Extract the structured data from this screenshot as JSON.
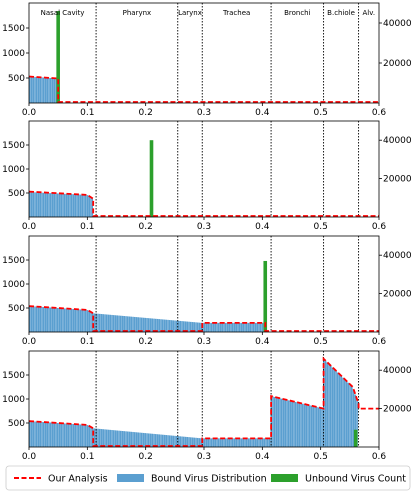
{
  "chart_data": {
    "type": "bar",
    "regions": [
      {
        "label": "Nasal Cavity",
        "start": 0.0,
        "end": 0.115
      },
      {
        "label": "Pharynx",
        "start": 0.115,
        "end": 0.255
      },
      {
        "label": "Larynx",
        "start": 0.255,
        "end": 0.297
      },
      {
        "label": "Trachea",
        "start": 0.297,
        "end": 0.415
      },
      {
        "label": "Bronchi",
        "start": 0.415,
        "end": 0.505
      },
      {
        "label": "B.chiole",
        "start": 0.505,
        "end": 0.565
      },
      {
        "label": "Alv.",
        "start": 0.565,
        "end": 0.6
      }
    ],
    "xlim": [
      0.0,
      0.6
    ],
    "ylim_left": [
      0,
      2000
    ],
    "ylim_right": [
      0,
      50000
    ],
    "xticks": [
      "0.0",
      "0.1",
      "0.2",
      "0.3",
      "0.4",
      "0.5",
      "0.6"
    ],
    "yticks_left": [
      "500",
      "1000",
      "1500"
    ],
    "yticks_right": [
      "20000",
      "40000"
    ],
    "legend": {
      "placement": "bottom",
      "entries": [
        {
          "label": "Our Analysis",
          "color": "#ff0000",
          "style": "dashed-line"
        },
        {
          "label": "Bound Virus Distribution",
          "color": "#5b9fd0",
          "style": "patch"
        },
        {
          "label": "Unbound Virus Count",
          "color": "#2ca02c",
          "style": "patch"
        }
      ]
    },
    "panels": [
      {
        "bound_profile": [
          [
            0.0,
            530
          ],
          [
            0.05,
            490
          ]
        ],
        "unbound_bar": {
          "x": 0.05,
          "value": 46000
        },
        "analysis_line": [
          [
            0.0,
            530
          ],
          [
            0.05,
            490
          ],
          [
            0.05,
            20
          ],
          [
            0.6,
            20
          ]
        ]
      },
      {
        "bound_profile": [
          [
            0.0,
            520
          ],
          [
            0.1,
            460
          ],
          [
            0.11,
            380
          ]
        ],
        "unbound_bar": {
          "x": 0.21,
          "value": 40000
        },
        "analysis_line": [
          [
            0.0,
            530
          ],
          [
            0.1,
            460
          ],
          [
            0.11,
            380
          ],
          [
            0.11,
            20
          ],
          [
            0.6,
            20
          ]
        ]
      },
      {
        "bound_profile": [
          [
            0.0,
            540
          ],
          [
            0.1,
            460
          ],
          [
            0.11,
            390
          ],
          [
            0.297,
            190
          ],
          [
            0.405,
            190
          ]
        ],
        "unbound_bar": {
          "x": 0.405,
          "value": 37000
        },
        "analysis_line": [
          [
            0.0,
            540
          ],
          [
            0.1,
            460
          ],
          [
            0.11,
            390
          ],
          [
            0.11,
            20
          ],
          [
            0.297,
            20
          ],
          [
            0.297,
            190
          ],
          [
            0.405,
            190
          ],
          [
            0.405,
            20
          ],
          [
            0.6,
            20
          ]
        ]
      },
      {
        "bound_profile": [
          [
            0.0,
            540
          ],
          [
            0.1,
            460
          ],
          [
            0.11,
            390
          ],
          [
            0.297,
            180
          ],
          [
            0.415,
            180
          ],
          [
            0.415,
            1060
          ],
          [
            0.505,
            800
          ],
          [
            0.505,
            1840
          ],
          [
            0.555,
            1250
          ],
          [
            0.565,
            900
          ]
        ],
        "unbound_bar": {
          "x": 0.56,
          "value": 9000
        },
        "analysis_line": [
          [
            0.0,
            540
          ],
          [
            0.1,
            460
          ],
          [
            0.11,
            390
          ],
          [
            0.11,
            20
          ],
          [
            0.297,
            20
          ],
          [
            0.297,
            180
          ],
          [
            0.415,
            180
          ],
          [
            0.415,
            1060
          ],
          [
            0.505,
            800
          ],
          [
            0.505,
            1840
          ],
          [
            0.555,
            1250
          ],
          [
            0.565,
            900
          ],
          [
            0.565,
            800
          ],
          [
            0.6,
            800
          ]
        ]
      }
    ]
  }
}
